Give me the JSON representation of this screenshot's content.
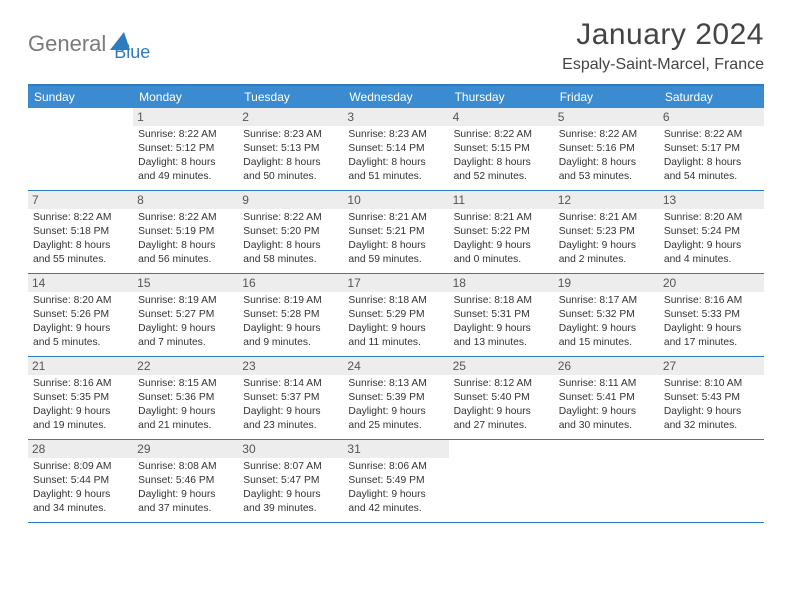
{
  "logo": {
    "part1": "General",
    "part2": "Blue"
  },
  "title": "January 2024",
  "location": "Espaly-Saint-Marcel, France",
  "weekdays": [
    "Sunday",
    "Monday",
    "Tuesday",
    "Wednesday",
    "Thursday",
    "Friday",
    "Saturday"
  ],
  "colors": {
    "header_bar": "#3b8bd0",
    "border": "#2f7bc0",
    "daynum_bg": "#ededed",
    "logo_gray": "#7a7a7a",
    "logo_blue": "#2f7bc0"
  },
  "weeks": [
    [
      null,
      {
        "n": "1",
        "sr": "8:22 AM",
        "ss": "5:12 PM",
        "dl": "8 hours and 49 minutes."
      },
      {
        "n": "2",
        "sr": "8:23 AM",
        "ss": "5:13 PM",
        "dl": "8 hours and 50 minutes."
      },
      {
        "n": "3",
        "sr": "8:23 AM",
        "ss": "5:14 PM",
        "dl": "8 hours and 51 minutes."
      },
      {
        "n": "4",
        "sr": "8:22 AM",
        "ss": "5:15 PM",
        "dl": "8 hours and 52 minutes."
      },
      {
        "n": "5",
        "sr": "8:22 AM",
        "ss": "5:16 PM",
        "dl": "8 hours and 53 minutes."
      },
      {
        "n": "6",
        "sr": "8:22 AM",
        "ss": "5:17 PM",
        "dl": "8 hours and 54 minutes."
      }
    ],
    [
      {
        "n": "7",
        "sr": "8:22 AM",
        "ss": "5:18 PM",
        "dl": "8 hours and 55 minutes."
      },
      {
        "n": "8",
        "sr": "8:22 AM",
        "ss": "5:19 PM",
        "dl": "8 hours and 56 minutes."
      },
      {
        "n": "9",
        "sr": "8:22 AM",
        "ss": "5:20 PM",
        "dl": "8 hours and 58 minutes."
      },
      {
        "n": "10",
        "sr": "8:21 AM",
        "ss": "5:21 PM",
        "dl": "8 hours and 59 minutes."
      },
      {
        "n": "11",
        "sr": "8:21 AM",
        "ss": "5:22 PM",
        "dl": "9 hours and 0 minutes."
      },
      {
        "n": "12",
        "sr": "8:21 AM",
        "ss": "5:23 PM",
        "dl": "9 hours and 2 minutes."
      },
      {
        "n": "13",
        "sr": "8:20 AM",
        "ss": "5:24 PM",
        "dl": "9 hours and 4 minutes."
      }
    ],
    [
      {
        "n": "14",
        "sr": "8:20 AM",
        "ss": "5:26 PM",
        "dl": "9 hours and 5 minutes."
      },
      {
        "n": "15",
        "sr": "8:19 AM",
        "ss": "5:27 PM",
        "dl": "9 hours and 7 minutes."
      },
      {
        "n": "16",
        "sr": "8:19 AM",
        "ss": "5:28 PM",
        "dl": "9 hours and 9 minutes."
      },
      {
        "n": "17",
        "sr": "8:18 AM",
        "ss": "5:29 PM",
        "dl": "9 hours and 11 minutes."
      },
      {
        "n": "18",
        "sr": "8:18 AM",
        "ss": "5:31 PM",
        "dl": "9 hours and 13 minutes."
      },
      {
        "n": "19",
        "sr": "8:17 AM",
        "ss": "5:32 PM",
        "dl": "9 hours and 15 minutes."
      },
      {
        "n": "20",
        "sr": "8:16 AM",
        "ss": "5:33 PM",
        "dl": "9 hours and 17 minutes."
      }
    ],
    [
      {
        "n": "21",
        "sr": "8:16 AM",
        "ss": "5:35 PM",
        "dl": "9 hours and 19 minutes."
      },
      {
        "n": "22",
        "sr": "8:15 AM",
        "ss": "5:36 PM",
        "dl": "9 hours and 21 minutes."
      },
      {
        "n": "23",
        "sr": "8:14 AM",
        "ss": "5:37 PM",
        "dl": "9 hours and 23 minutes."
      },
      {
        "n": "24",
        "sr": "8:13 AM",
        "ss": "5:39 PM",
        "dl": "9 hours and 25 minutes."
      },
      {
        "n": "25",
        "sr": "8:12 AM",
        "ss": "5:40 PM",
        "dl": "9 hours and 27 minutes."
      },
      {
        "n": "26",
        "sr": "8:11 AM",
        "ss": "5:41 PM",
        "dl": "9 hours and 30 minutes."
      },
      {
        "n": "27",
        "sr": "8:10 AM",
        "ss": "5:43 PM",
        "dl": "9 hours and 32 minutes."
      }
    ],
    [
      {
        "n": "28",
        "sr": "8:09 AM",
        "ss": "5:44 PM",
        "dl": "9 hours and 34 minutes."
      },
      {
        "n": "29",
        "sr": "8:08 AM",
        "ss": "5:46 PM",
        "dl": "9 hours and 37 minutes."
      },
      {
        "n": "30",
        "sr": "8:07 AM",
        "ss": "5:47 PM",
        "dl": "9 hours and 39 minutes."
      },
      {
        "n": "31",
        "sr": "8:06 AM",
        "ss": "5:49 PM",
        "dl": "9 hours and 42 minutes."
      },
      null,
      null,
      null
    ]
  ],
  "labels": {
    "sunrise": "Sunrise:",
    "sunset": "Sunset:",
    "daylight": "Daylight:"
  }
}
